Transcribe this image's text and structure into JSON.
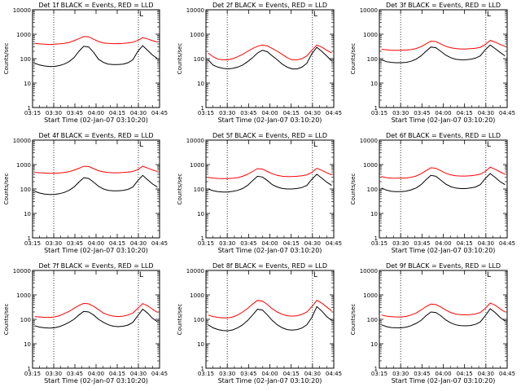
{
  "figure": {
    "background": "#ffffff",
    "axis_color": "#000000"
  },
  "chart_data": [
    {
      "type": "line",
      "title": "Det 1f BLACK = Events, RED = LLD",
      "xlabel": "Start Time (02-Jan-07 03:10:20)",
      "ylabel": "Counts/sec",
      "x_ticks": [
        "03:15",
        "03:30",
        "03:45",
        "04:00",
        "04:15",
        "04:30",
        "04:45"
      ],
      "y_ticks": [
        "1",
        "10",
        "100",
        "1000",
        "10000"
      ],
      "xlim_min": [
        5,
        95
      ],
      "ylim": [
        1,
        10000
      ],
      "y_scale": "log",
      "vlines_min": [
        20,
        80
      ],
      "annotation": "L",
      "series": [
        {
          "color": "#ff0000",
          "values": [
            420,
            400,
            390,
            380,
            390,
            400,
            420,
            460,
            540,
            660,
            800,
            780,
            620,
            500,
            440,
            420,
            410,
            410,
            420,
            440,
            470,
            560,
            720,
            640,
            540,
            480
          ]
        },
        {
          "color": "#000000",
          "values": [
            65,
            55,
            50,
            48,
            48,
            52,
            60,
            75,
            110,
            200,
            320,
            300,
            180,
            95,
            70,
            60,
            57,
            57,
            60,
            68,
            90,
            200,
            340,
            220,
            140,
            100
          ]
        }
      ]
    },
    {
      "type": "line",
      "title": "Det 2f BLACK = Events, RED = LLD",
      "xlabel": "Start Time (02-Jan-07 03:10:20)",
      "ylabel": "Counts/sec",
      "x_ticks": [
        "03:15",
        "03:30",
        "03:45",
        "04:00",
        "04:15",
        "04:30",
        "04:45"
      ],
      "y_ticks": [
        "1",
        "10",
        "100",
        "1000",
        "10000"
      ],
      "xlim_min": [
        5,
        95
      ],
      "ylim": [
        1,
        10000
      ],
      "y_scale": "log",
      "vlines_min": [
        20,
        80
      ],
      "annotation": "L",
      "series": [
        {
          "color": "#ff0000",
          "values": [
            170,
            120,
            95,
            90,
            90,
            100,
            120,
            150,
            200,
            260,
            320,
            360,
            330,
            260,
            200,
            150,
            110,
            90,
            90,
            100,
            130,
            220,
            360,
            300,
            220,
            170
          ]
        },
        {
          "color": "#000000",
          "values": [
            90,
            55,
            45,
            40,
            38,
            40,
            45,
            55,
            75,
            110,
            170,
            220,
            190,
            130,
            90,
            60,
            45,
            38,
            38,
            45,
            65,
            160,
            290,
            200,
            130,
            80
          ]
        }
      ]
    },
    {
      "type": "line",
      "title": "Det 3f BLACK = Events, RED = LLD",
      "xlabel": "Start Time (02-Jan-07 03:10:20)",
      "ylabel": "Counts/sec",
      "x_ticks": [
        "03:15",
        "03:30",
        "03:45",
        "04:00",
        "04:15",
        "04:30",
        "04:45"
      ],
      "y_ticks": [
        "1",
        "10",
        "100",
        "1000",
        "10000"
      ],
      "xlim_min": [
        5,
        95
      ],
      "ylim": [
        1,
        10000
      ],
      "y_scale": "log",
      "vlines_min": [
        20,
        80
      ],
      "annotation": "L",
      "series": [
        {
          "color": "#ff0000",
          "values": [
            240,
            230,
            220,
            220,
            220,
            225,
            235,
            260,
            310,
            400,
            520,
            500,
            400,
            320,
            280,
            260,
            250,
            250,
            255,
            265,
            290,
            380,
            560,
            480,
            380,
            320
          ]
        },
        {
          "color": "#000000",
          "values": [
            90,
            75,
            70,
            68,
            68,
            70,
            78,
            95,
            130,
            200,
            300,
            280,
            200,
            140,
            110,
            95,
            90,
            90,
            95,
            105,
            130,
            230,
            360,
            260,
            180,
            130
          ]
        }
      ]
    },
    {
      "type": "line",
      "title": "Det 4f BLACK = Events, RED = LLD",
      "xlabel": "Start Time (02-Jan-07 03:10:20)",
      "ylabel": "Counts/sec",
      "x_ticks": [
        "03:15",
        "03:30",
        "03:45",
        "04:00",
        "04:15",
        "04:30",
        "04:45"
      ],
      "y_ticks": [
        "1",
        "10",
        "100",
        "1000",
        "10000"
      ],
      "xlim_min": [
        5,
        95
      ],
      "ylim": [
        1,
        10000
      ],
      "y_scale": "log",
      "vlines_min": [
        20,
        80
      ],
      "annotation": "L",
      "series": [
        {
          "color": "#ff0000",
          "values": [
            480,
            460,
            450,
            440,
            440,
            450,
            470,
            510,
            590,
            700,
            850,
            830,
            680,
            560,
            500,
            470,
            460,
            460,
            470,
            490,
            520,
            620,
            850,
            720,
            600,
            520
          ]
        },
        {
          "color": "#000000",
          "values": [
            80,
            68,
            62,
            60,
            60,
            64,
            72,
            88,
            120,
            190,
            290,
            270,
            190,
            130,
            100,
            88,
            84,
            84,
            88,
            96,
            120,
            220,
            360,
            240,
            160,
            120
          ]
        }
      ]
    },
    {
      "type": "line",
      "title": "Det 5f BLACK = Events, RED = LLD",
      "xlabel": "Start Time (02-Jan-07 03:10:20)",
      "ylabel": "Counts/sec",
      "x_ticks": [
        "03:15",
        "03:30",
        "03:45",
        "04:00",
        "04:15",
        "04:30",
        "04:45"
      ],
      "y_ticks": [
        "1",
        "10",
        "100",
        "1000",
        "10000"
      ],
      "xlim_min": [
        5,
        95
      ],
      "ylim": [
        1,
        10000
      ],
      "y_scale": "log",
      "vlines_min": [
        20,
        80
      ],
      "annotation": "L",
      "series": [
        {
          "color": "#ff0000",
          "values": [
            300,
            280,
            270,
            265,
            265,
            275,
            290,
            330,
            400,
            520,
            680,
            650,
            520,
            420,
            360,
            330,
            320,
            320,
            330,
            350,
            380,
            480,
            700,
            580,
            460,
            380
          ]
        },
        {
          "color": "#000000",
          "values": [
            100,
            85,
            78,
            75,
            75,
            80,
            88,
            105,
            140,
            220,
            330,
            310,
            220,
            150,
            120,
            105,
            100,
            100,
            105,
            115,
            140,
            250,
            400,
            280,
            190,
            140
          ]
        }
      ]
    },
    {
      "type": "line",
      "title": "Det 6f BLACK = Events, RED = LLD",
      "xlabel": "Start Time (02-Jan-07 03:10:20)",
      "ylabel": "Counts/sec",
      "x_ticks": [
        "03:15",
        "03:30",
        "03:45",
        "04:00",
        "04:15",
        "04:30",
        "04:45"
      ],
      "y_ticks": [
        "1",
        "10",
        "100",
        "1000",
        "10000"
      ],
      "xlim_min": [
        5,
        95
      ],
      "ylim": [
        1,
        10000
      ],
      "y_scale": "log",
      "vlines_min": [
        20,
        80
      ],
      "annotation": "L",
      "series": [
        {
          "color": "#ff0000",
          "values": [
            320,
            290,
            280,
            275,
            275,
            285,
            300,
            340,
            420,
            560,
            740,
            700,
            560,
            440,
            380,
            350,
            340,
            340,
            350,
            370,
            400,
            520,
            780,
            640,
            500,
            400
          ]
        },
        {
          "color": "#000000",
          "values": [
            110,
            90,
            80,
            78,
            78,
            82,
            92,
            110,
            150,
            240,
            360,
            330,
            230,
            160,
            125,
            110,
            104,
            104,
            110,
            120,
            150,
            270,
            430,
            300,
            200,
            150
          ]
        }
      ]
    },
    {
      "type": "line",
      "title": "Det 7f BLACK = Events, RED = LLD",
      "xlabel": "Start Time (02-Jan-07 03:10:20)",
      "ylabel": "Counts/sec",
      "x_ticks": [
        "03:15",
        "03:30",
        "03:45",
        "04:00",
        "04:15",
        "04:30",
        "04:45"
      ],
      "y_ticks": [
        "1",
        "10",
        "100",
        "1000",
        "10000"
      ],
      "xlim_min": [
        5,
        95
      ],
      "ylim": [
        1,
        10000
      ],
      "y_scale": "log",
      "vlines_min": [
        20,
        80
      ],
      "annotation": "L",
      "series": [
        {
          "color": "#ff0000",
          "values": [
            130,
            125,
            120,
            120,
            125,
            140,
            170,
            210,
            280,
            370,
            450,
            430,
            340,
            250,
            180,
            150,
            135,
            130,
            135,
            150,
            180,
            280,
            440,
            360,
            260,
            190
          ]
        },
        {
          "color": "#000000",
          "values": [
            55,
            48,
            45,
            44,
            45,
            50,
            60,
            75,
            100,
            150,
            210,
            200,
            150,
            100,
            75,
            60,
            52,
            50,
            52,
            58,
            75,
            140,
            260,
            180,
            110,
            80
          ]
        }
      ]
    },
    {
      "type": "line",
      "title": "Det 8f BLACK = Events, RED = LLD",
      "xlabel": "Start Time (02-Jan-07 03:10:20)",
      "ylabel": "Counts/sec",
      "x_ticks": [
        "03:15",
        "03:30",
        "03:45",
        "04:00",
        "04:15",
        "04:30",
        "04:45"
      ],
      "y_ticks": [
        "1",
        "10",
        "100",
        "1000",
        "10000"
      ],
      "xlim_min": [
        5,
        95
      ],
      "ylim": [
        1,
        10000
      ],
      "y_scale": "log",
      "vlines_min": [
        20,
        80
      ],
      "annotation": "L",
      "series": [
        {
          "color": "#ff0000",
          "values": [
            150,
            130,
            120,
            115,
            115,
            125,
            150,
            200,
            280,
            420,
            600,
            560,
            400,
            270,
            200,
            160,
            140,
            135,
            140,
            160,
            200,
            330,
            600,
            460,
            320,
            220
          ]
        },
        {
          "color": "#000000",
          "values": [
            60,
            45,
            38,
            35,
            34,
            37,
            45,
            60,
            90,
            150,
            260,
            240,
            150,
            90,
            60,
            45,
            38,
            36,
            38,
            44,
            60,
            120,
            330,
            220,
            130,
            90
          ]
        }
      ]
    },
    {
      "type": "line",
      "title": "Det 9f BLACK = Events, RED = LLD",
      "xlabel": "Start Time (02-Jan-07 03:10:20)",
      "ylabel": "Counts/sec",
      "x_ticks": [
        "03:15",
        "03:30",
        "03:45",
        "04:00",
        "04:15",
        "04:30",
        "04:45"
      ],
      "y_ticks": [
        "1",
        "10",
        "100",
        "1000",
        "10000"
      ],
      "xlim_min": [
        5,
        95
      ],
      "ylim": [
        1,
        10000
      ],
      "y_scale": "log",
      "vlines_min": [
        20,
        80
      ],
      "annotation": "L",
      "series": [
        {
          "color": "#ff0000",
          "values": [
            150,
            135,
            128,
            125,
            125,
            132,
            150,
            180,
            240,
            330,
            420,
            400,
            320,
            240,
            190,
            165,
            155,
            152,
            155,
            165,
            190,
            280,
            460,
            380,
            270,
            200
          ]
        },
        {
          "color": "#000000",
          "values": [
            60,
            50,
            46,
            45,
            45,
            48,
            55,
            68,
            90,
            140,
            200,
            190,
            140,
            95,
            72,
            60,
            55,
            54,
            56,
            62,
            78,
            140,
            270,
            190,
            120,
            85
          ]
        }
      ]
    }
  ]
}
